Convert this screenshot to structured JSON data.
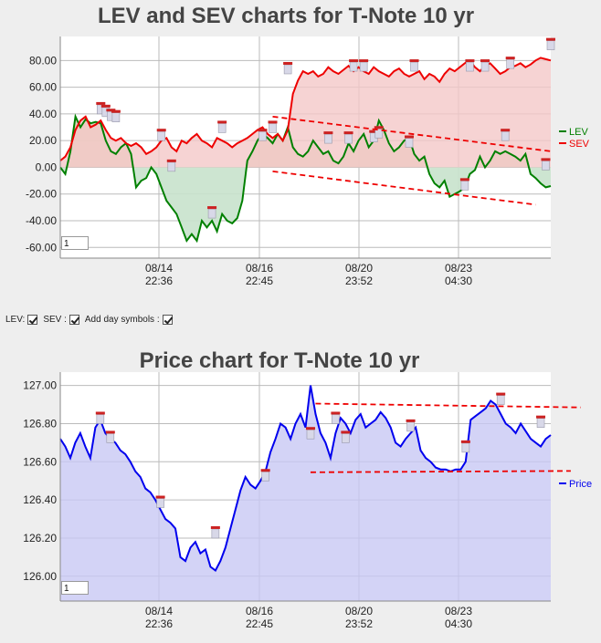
{
  "chart_data": [
    {
      "type": "line",
      "title": "LEV and SEV charts for T-Note 10 yr",
      "ylim": [
        -68,
        98
      ],
      "y_ticks": [
        "80.00",
        "60.00",
        "40.00",
        "20.00",
        "0.00",
        "-20.00",
        "-40.00",
        "-60.00"
      ],
      "x_ticks": [
        {
          "date": "08/14",
          "time": "22:36"
        },
        {
          "date": "08/16",
          "time": "22:45"
        },
        {
          "date": "08/20",
          "time": "23:52"
        },
        {
          "date": "08/23",
          "time": "04:30"
        }
      ],
      "grid": true,
      "legend_position": "right",
      "zoom_value": "1",
      "series": [
        {
          "name": "LEV",
          "color": "#008000",
          "values": [
            0,
            -5,
            12,
            38,
            30,
            36,
            33,
            34,
            33,
            20,
            12,
            10,
            15,
            18,
            10,
            -15,
            -10,
            -8,
            0,
            -5,
            -15,
            -25,
            -30,
            -35,
            -45,
            -55,
            -50,
            -55,
            -40,
            -45,
            -40,
            -48,
            -35,
            -40,
            -42,
            -38,
            -25,
            5,
            12,
            20,
            25,
            22,
            18,
            25,
            20,
            30,
            15,
            10,
            8,
            12,
            20,
            15,
            10,
            12,
            5,
            3,
            8,
            18,
            12,
            20,
            25,
            15,
            20,
            35,
            28,
            18,
            12,
            15,
            20,
            22,
            10,
            5,
            8,
            -5,
            -12,
            -15,
            -10,
            -22,
            -20,
            -18,
            -15,
            -5,
            -2,
            8,
            0,
            5,
            12,
            10,
            12,
            10,
            8,
            5,
            10,
            -5,
            -8,
            -12,
            -15,
            -14
          ]
        },
        {
          "name": "SEV",
          "color": "#ee0000",
          "values": [
            5,
            8,
            15,
            28,
            35,
            38,
            30,
            32,
            35,
            28,
            22,
            20,
            22,
            18,
            16,
            18,
            15,
            10,
            12,
            15,
            20,
            22,
            15,
            12,
            20,
            18,
            22,
            25,
            20,
            18,
            15,
            22,
            20,
            18,
            15,
            18,
            20,
            22,
            25,
            28,
            30,
            25,
            22,
            25,
            20,
            28,
            55,
            65,
            72,
            70,
            72,
            68,
            70,
            75,
            72,
            70,
            73,
            76,
            72,
            75,
            72,
            70,
            75,
            72,
            70,
            68,
            72,
            74,
            70,
            68,
            70,
            72,
            66,
            70,
            68,
            64,
            70,
            74,
            72,
            75,
            78,
            80,
            75,
            72,
            76,
            78,
            74,
            70,
            72,
            75,
            76,
            78,
            75,
            77,
            80,
            82,
            81,
            80
          ]
        }
      ],
      "day_symbols": [
        {
          "x": 8,
          "y": 40
        },
        {
          "x": 9,
          "y": 38
        },
        {
          "x": 10,
          "y": 35
        },
        {
          "x": 11,
          "y": 34
        },
        {
          "x": 20,
          "y": 20
        },
        {
          "x": 22,
          "y": -3
        },
        {
          "x": 30,
          "y": -38
        },
        {
          "x": 32,
          "y": 26
        },
        {
          "x": 40,
          "y": 20
        },
        {
          "x": 42,
          "y": 26
        },
        {
          "x": 45,
          "y": 70
        },
        {
          "x": 53,
          "y": 18
        },
        {
          "x": 57,
          "y": 18
        },
        {
          "x": 58,
          "y": 72
        },
        {
          "x": 60,
          "y": 72
        },
        {
          "x": 62,
          "y": 19
        },
        {
          "x": 63,
          "y": 22
        },
        {
          "x": 69,
          "y": 15
        },
        {
          "x": 70,
          "y": 72
        },
        {
          "x": 80,
          "y": -17
        },
        {
          "x": 81,
          "y": 72
        },
        {
          "x": 84,
          "y": 72
        },
        {
          "x": 88,
          "y": 20
        },
        {
          "x": 89,
          "y": 74
        },
        {
          "x": 96,
          "y": -2
        },
        {
          "x": 97,
          "y": 88
        }
      ],
      "trendlines": [
        {
          "x": [
            42,
            97
          ],
          "y": [
            38,
            12
          ]
        },
        {
          "x": [
            42,
            94
          ],
          "y": [
            -3,
            -28
          ]
        }
      ]
    },
    {
      "type": "area",
      "title": "Price chart for T-Note 10 yr",
      "ylim": [
        125.87,
        127.07
      ],
      "y_ticks": [
        "127.00",
        "126.80",
        "126.60",
        "126.40",
        "126.20",
        "126.00"
      ],
      "x_ticks": [
        {
          "date": "08/14",
          "time": "22:36"
        },
        {
          "date": "08/16",
          "time": "22:45"
        },
        {
          "date": "08/20",
          "time": "23:52"
        },
        {
          "date": "08/23",
          "time": "04:30"
        }
      ],
      "grid": true,
      "legend_position": "right",
      "zoom_value": "1",
      "series": [
        {
          "name": "Price",
          "color": "#0000ee",
          "values": [
            126.72,
            126.68,
            126.62,
            126.7,
            126.75,
            126.68,
            126.62,
            126.78,
            126.82,
            126.75,
            126.72,
            126.7,
            126.66,
            126.64,
            126.6,
            126.55,
            126.52,
            126.46,
            126.44,
            126.4,
            126.35,
            126.3,
            126.28,
            126.25,
            126.1,
            126.08,
            126.15,
            126.18,
            126.12,
            126.14,
            126.05,
            126.03,
            126.08,
            126.15,
            126.25,
            126.35,
            126.45,
            126.52,
            126.48,
            126.46,
            126.5,
            126.55,
            126.65,
            126.72,
            126.8,
            126.78,
            126.72,
            126.8,
            126.85,
            126.78,
            127.0,
            126.85,
            126.75,
            126.7,
            126.62,
            126.75,
            126.83,
            126.8,
            126.75,
            126.82,
            126.85,
            126.78,
            126.8,
            126.82,
            126.86,
            126.83,
            126.78,
            126.7,
            126.68,
            126.72,
            126.75,
            126.78,
            126.66,
            126.62,
            126.6,
            126.57,
            126.56,
            126.56,
            126.55,
            126.56,
            126.56,
            126.6,
            126.82,
            126.84,
            126.86,
            126.88,
            126.92,
            126.9,
            126.85,
            126.8,
            126.78,
            126.75,
            126.8,
            126.76,
            126.72,
            126.7,
            126.68,
            126.72,
            126.74
          ]
        }
      ],
      "day_symbols": [
        {
          "x": 8,
          "y": 126.8
        },
        {
          "x": 10,
          "y": 126.7
        },
        {
          "x": 20,
          "y": 126.36
        },
        {
          "x": 31,
          "y": 126.2
        },
        {
          "x": 41,
          "y": 126.5
        },
        {
          "x": 50,
          "y": 126.72
        },
        {
          "x": 55,
          "y": 126.8
        },
        {
          "x": 57,
          "y": 126.7
        },
        {
          "x": 70,
          "y": 126.76
        },
        {
          "x": 81,
          "y": 126.65
        },
        {
          "x": 88,
          "y": 126.9
        },
        {
          "x": 96,
          "y": 126.78
        }
      ],
      "trendlines": [
        {
          "x": [
            51,
            104
          ],
          "y": [
            126.905,
            126.885
          ]
        },
        {
          "x": [
            50,
            102
          ],
          "y": [
            126.545,
            126.552
          ]
        }
      ]
    }
  ],
  "controls": {
    "lev_label": "LEV:",
    "sev_label": "SEV :",
    "day_label": "Add day symbols :"
  },
  "colors": {
    "plot_bg": "#ffffff",
    "grid": "#bbbbbb",
    "lev_fill_pos": "#d8ccb0",
    "lev_fill_neg": "#c8e2cc",
    "sev_fill": "#f4c8c8",
    "price_fill": "#c8c8f4",
    "trend": "#ee0000"
  }
}
